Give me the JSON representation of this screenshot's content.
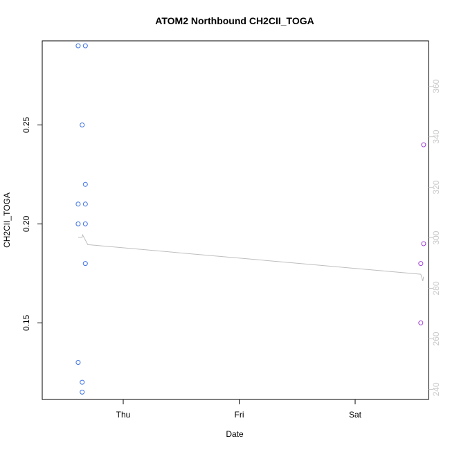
{
  "chart_data": {
    "type": "scatter",
    "title": "ATOM2 Northbound CH2Cl I_TOGA",
    "xlabel": "Date",
    "ylabel": "CH2CII_TOGA",
    "x_ticks": [
      "Thu",
      "Fri",
      "Sat"
    ],
    "y_ticks": [
      "0.15",
      "0.20",
      "0.25"
    ],
    "y2_ticks": [
      "240",
      "260",
      "280",
      "300",
      "320",
      "340",
      "360"
    ],
    "ylim": [
      0.1113,
      0.2925
    ],
    "y2lim": [
      236,
      378
    ],
    "colors": {
      "series_1": "#3b6fe6",
      "series_2": "#a040d8",
      "line": "#bebebe",
      "right_axis": "#c8c8c8"
    },
    "series": [
      {
        "color": "#3b6fe6",
        "points": [
          {
            "x": "Wed 14:40",
            "y": 0.29
          },
          {
            "x": "Wed 16:10",
            "y": 0.29
          },
          {
            "x": "Wed 15:30",
            "y": 0.25
          },
          {
            "x": "Wed 16:10",
            "y": 0.22
          },
          {
            "x": "Wed 14:40",
            "y": 0.21
          },
          {
            "x": "Wed 16:10",
            "y": 0.21
          },
          {
            "x": "Wed 14:40",
            "y": 0.2
          },
          {
            "x": "Wed 16:10",
            "y": 0.2
          },
          {
            "x": "Wed 16:10",
            "y": 0.18
          },
          {
            "x": "Wed 14:40",
            "y": 0.13
          },
          {
            "x": "Wed 15:30",
            "y": 0.12
          },
          {
            "x": "Wed 15:30",
            "y": 0.115
          }
        ]
      },
      {
        "color": "#a040d8",
        "points": [
          {
            "x": "Sat 14:10",
            "y": 0.24
          },
          {
            "x": "Sat 14:10",
            "y": 0.19
          },
          {
            "x": "Sat 13:35",
            "y": 0.18
          },
          {
            "x": "Sat 13:35",
            "y": 0.15
          }
        ]
      }
    ],
    "line_series": {
      "axis": "right",
      "color": "#bebebe",
      "points": [
        {
          "x": "Wed 14:40",
          "y": 300.2
        },
        {
          "x": "Wed 15:30",
          "y": 300.2
        },
        {
          "x": "Wed 15:35",
          "y": 301.2
        },
        {
          "x": "Wed 16:40",
          "y": 297.3
        },
        {
          "x": "Sat 13:35",
          "y": 285.6
        },
        {
          "x": "Sat 14:00",
          "y": 282.9
        },
        {
          "x": "Sat 14:10",
          "y": 284.6
        }
      ]
    }
  }
}
